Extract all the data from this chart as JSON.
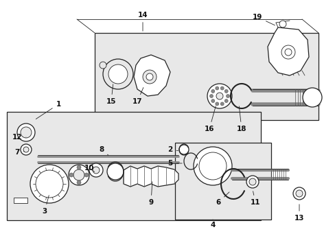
{
  "bg": "#ffffff",
  "panel_fill": "#e8e8e8",
  "box_fill": "#e8e8e8",
  "line_color": "#222222",
  "fig_w": 4.89,
  "fig_h": 3.6,
  "dpi": 100,
  "lw_thin": 0.6,
  "lw_med": 0.9,
  "lw_thick": 1.5,
  "font_size": 7.5
}
